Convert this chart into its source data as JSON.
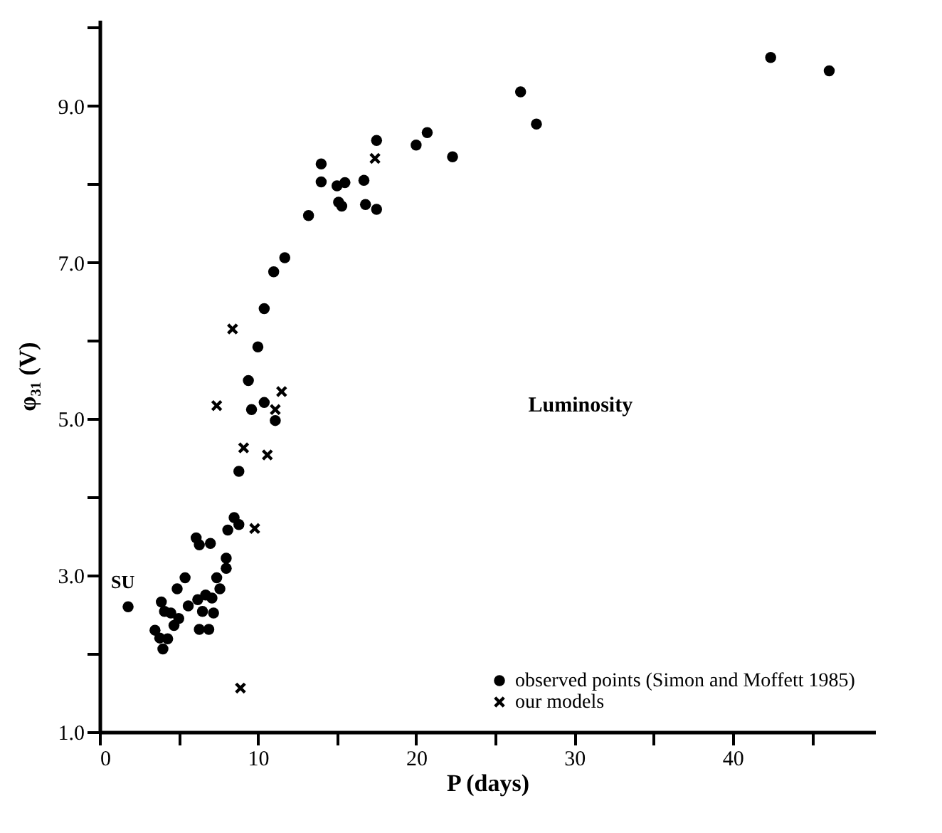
{
  "chart_data": {
    "type": "scatter",
    "xlabel": "P (days)",
    "ylabel": "φ₃₁ (V)",
    "xlim": [
      0,
      49
    ],
    "ylim": [
      1,
      10.1
    ],
    "xticks": [
      0,
      {
        "value": 5,
        "label": null
      },
      10,
      {
        "value": 15,
        "label": null
      },
      20,
      {
        "value": 25,
        "label": null
      },
      30,
      {
        "value": 35,
        "label": null
      },
      40,
      {
        "value": 45,
        "label": null
      }
    ],
    "yticks": [
      {
        "value": 1,
        "label": "1.0"
      },
      {
        "value": 2,
        "label": null
      },
      {
        "value": 3,
        "label": "3.0"
      },
      {
        "value": 4,
        "label": null
      },
      {
        "value": 5,
        "label": "5.0"
      },
      {
        "value": 6,
        "label": null
      },
      {
        "value": 7,
        "label": "7.0"
      },
      {
        "value": 8,
        "label": null
      },
      {
        "value": 9,
        "label": "9.0"
      },
      {
        "value": 10,
        "label": null
      }
    ],
    "grid": false,
    "legend": "bottom right",
    "annotations": [
      "Luminosity",
      "SU"
    ],
    "series": [
      {
        "name": "observed points (Simon and Moffett 1985)",
        "color": "#000000",
        "marker": "circle",
        "x": [
          1.8,
          3.5,
          3.8,
          3.9,
          4.0,
          4.1,
          4.3,
          4.5,
          4.7,
          4.9,
          5.0,
          5.4,
          5.6,
          6.1,
          6.2,
          6.3,
          6.3,
          6.5,
          6.7,
          6.9,
          7.0,
          7.1,
          7.2,
          7.4,
          7.6,
          8.0,
          8.0,
          8.1,
          8.5,
          8.8,
          8.8,
          9.4,
          9.6,
          10.0,
          10.4,
          10.4,
          11.0,
          11.1,
          11.7,
          13.2,
          14.0,
          14.0,
          15.0,
          15.1,
          15.3,
          15.5,
          16.7,
          16.8,
          17.5,
          17.5,
          20.0,
          20.7,
          22.3,
          26.6,
          27.6,
          42.4,
          46.1
        ],
        "values": [
          2.6,
          2.3,
          2.2,
          2.66,
          2.06,
          2.54,
          2.19,
          2.52,
          2.36,
          2.83,
          2.45,
          2.97,
          2.61,
          3.48,
          2.69,
          3.39,
          2.31,
          2.54,
          2.75,
          2.31,
          3.41,
          2.71,
          2.52,
          2.97,
          2.83,
          3.22,
          3.09,
          3.58,
          3.74,
          3.65,
          4.33,
          5.49,
          5.12,
          5.92,
          6.41,
          5.21,
          6.88,
          4.98,
          7.06,
          7.6,
          8.26,
          8.03,
          7.98,
          7.77,
          7.72,
          8.02,
          8.05,
          7.74,
          7.68,
          8.56,
          8.5,
          8.66,
          8.35,
          9.18,
          8.77,
          9.62,
          9.45
        ]
      },
      {
        "name": "our models",
        "color": "#000000",
        "marker": "cross",
        "x": [
          7.4,
          8.4,
          8.9,
          9.1,
          9.8,
          10.6,
          11.1,
          11.5,
          17.4
        ],
        "values": [
          5.17,
          6.15,
          1.56,
          4.63,
          3.6,
          4.54,
          5.12,
          5.35,
          8.33
        ]
      }
    ]
  }
}
